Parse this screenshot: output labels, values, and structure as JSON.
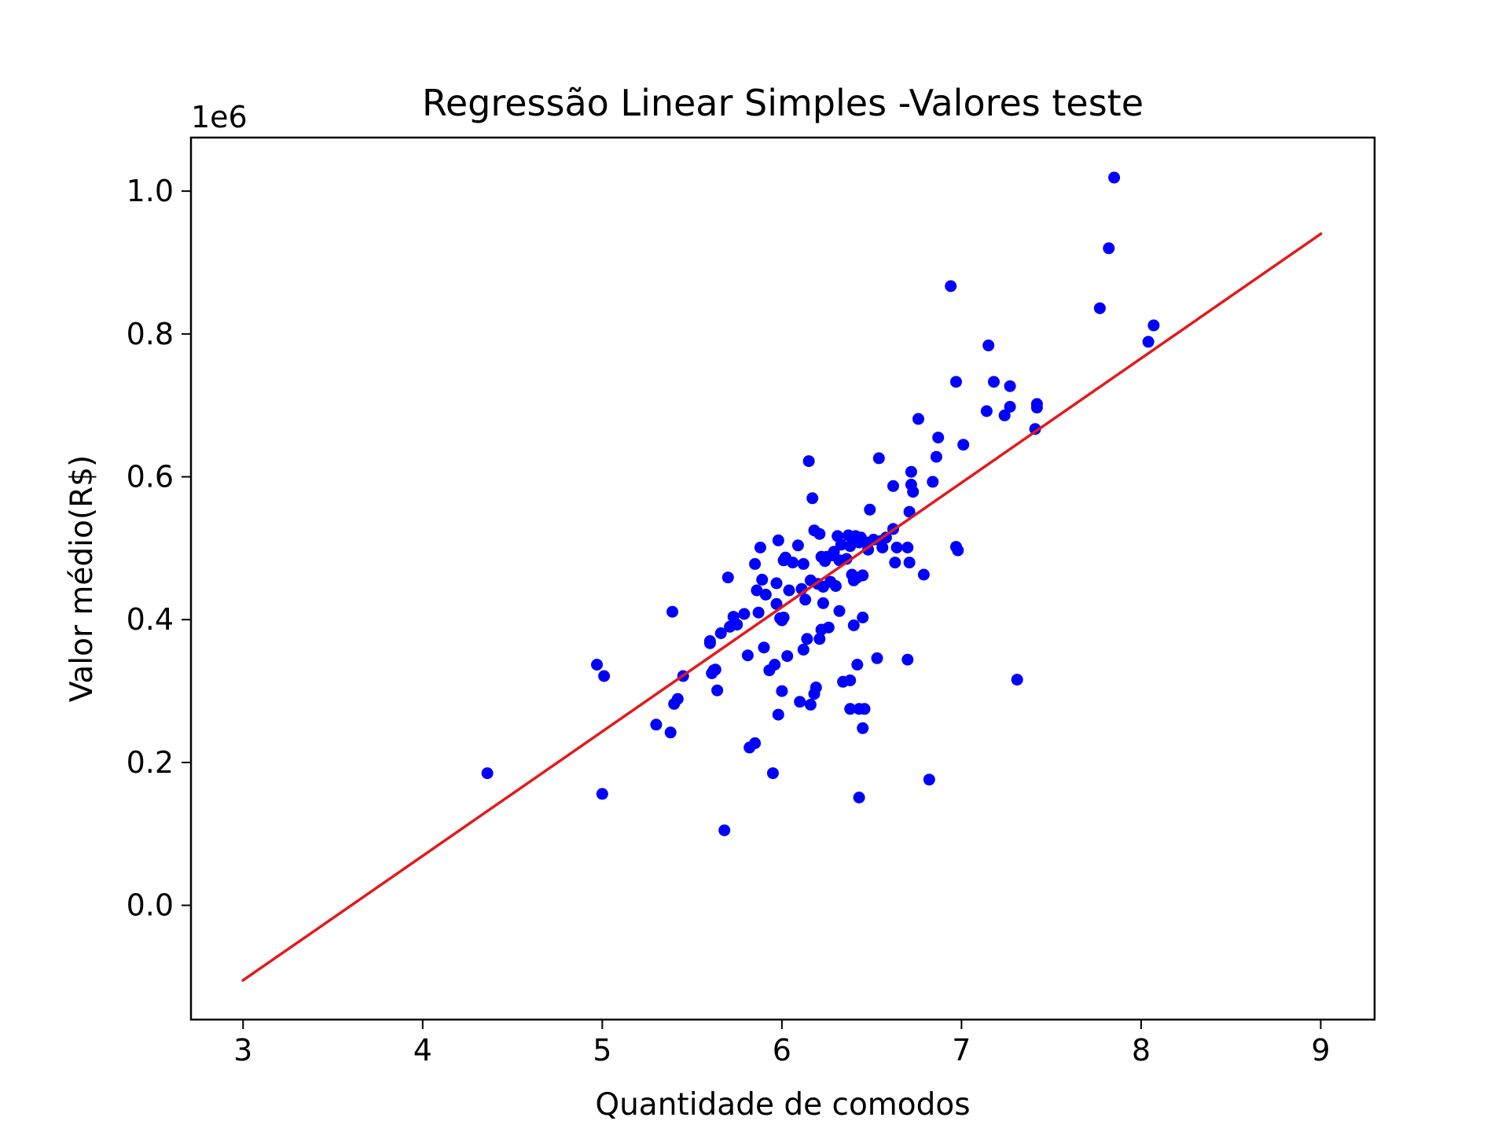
{
  "chart_data": {
    "type": "scatter",
    "title": "Regressão Linear Simples -Valores teste",
    "xlabel": "Quantidade de comodos",
    "ylabel": "Valor médio(R$)",
    "y_offset_label": "1e6",
    "y_multiplier": 1000000,
    "xlim": [
      2.71,
      9.3
    ],
    "ylim": [
      -0.16,
      1.075
    ],
    "xticks": [
      3,
      4,
      5,
      6,
      7,
      8,
      9
    ],
    "yticks": [
      0.0,
      0.2,
      0.4,
      0.6,
      0.8,
      1.0
    ],
    "ytick_labels": [
      "0.0",
      "0.2",
      "0.4",
      "0.6",
      "0.8",
      "1.0"
    ],
    "xtick_labels": [
      "3",
      "4",
      "5",
      "6",
      "7",
      "8",
      "9"
    ],
    "grid": false,
    "colors": {
      "points": "#0000ff",
      "line": "#e31a1c",
      "axes": "#000000"
    },
    "series": [
      {
        "kind": "scatter",
        "points": [
          [
            4.36,
            0.185
          ],
          [
            4.97,
            0.337
          ],
          [
            5.01,
            0.321
          ],
          [
            5.0,
            0.156
          ],
          [
            5.3,
            0.253
          ],
          [
            5.38,
            0.242
          ],
          [
            5.39,
            0.411
          ],
          [
            5.4,
            0.282
          ],
          [
            5.42,
            0.289
          ],
          [
            5.45,
            0.321
          ],
          [
            5.6,
            0.367
          ],
          [
            5.6,
            0.37
          ],
          [
            5.61,
            0.325
          ],
          [
            5.62,
            0.329
          ],
          [
            5.63,
            0.33
          ],
          [
            5.64,
            0.301
          ],
          [
            5.66,
            0.381
          ],
          [
            5.68,
            0.105
          ],
          [
            5.7,
            0.459
          ],
          [
            5.71,
            0.39
          ],
          [
            5.73,
            0.404
          ],
          [
            5.75,
            0.393
          ],
          [
            5.79,
            0.408
          ],
          [
            5.81,
            0.35
          ],
          [
            5.82,
            0.221
          ],
          [
            5.85,
            0.227
          ],
          [
            5.85,
            0.478
          ],
          [
            5.86,
            0.441
          ],
          [
            5.87,
            0.41
          ],
          [
            5.88,
            0.501
          ],
          [
            5.89,
            0.456
          ],
          [
            5.9,
            0.361
          ],
          [
            5.91,
            0.435
          ],
          [
            5.93,
            0.329
          ],
          [
            5.95,
            0.185
          ],
          [
            5.96,
            0.337
          ],
          [
            5.97,
            0.451
          ],
          [
            5.97,
            0.422
          ],
          [
            5.98,
            0.511
          ],
          [
            5.98,
            0.267
          ],
          [
            5.99,
            0.402
          ],
          [
            6.0,
            0.399
          ],
          [
            6.0,
            0.3
          ],
          [
            6.01,
            0.403
          ],
          [
            6.01,
            0.483
          ],
          [
            6.02,
            0.487
          ],
          [
            6.03,
            0.349
          ],
          [
            6.04,
            0.441
          ],
          [
            6.06,
            0.48
          ],
          [
            6.09,
            0.504
          ],
          [
            6.1,
            0.285
          ],
          [
            6.11,
            0.443
          ],
          [
            6.12,
            0.478
          ],
          [
            6.12,
            0.358
          ],
          [
            6.13,
            0.428
          ],
          [
            6.14,
            0.373
          ],
          [
            6.15,
            0.622
          ],
          [
            6.16,
            0.281
          ],
          [
            6.16,
            0.455
          ],
          [
            6.17,
            0.57
          ],
          [
            6.18,
            0.525
          ],
          [
            6.18,
            0.296
          ],
          [
            6.19,
            0.305
          ],
          [
            6.2,
            0.45
          ],
          [
            6.21,
            0.52
          ],
          [
            6.21,
            0.373
          ],
          [
            6.22,
            0.488
          ],
          [
            6.22,
            0.386
          ],
          [
            6.23,
            0.446
          ],
          [
            6.23,
            0.423
          ],
          [
            6.24,
            0.482
          ],
          [
            6.25,
            0.488
          ],
          [
            6.26,
            0.389
          ],
          [
            6.27,
            0.453
          ],
          [
            6.28,
            0.49
          ],
          [
            6.29,
            0.495
          ],
          [
            6.3,
            0.447
          ],
          [
            6.31,
            0.517
          ],
          [
            6.32,
            0.412
          ],
          [
            6.32,
            0.483
          ],
          [
            6.33,
            0.505
          ],
          [
            6.34,
            0.313
          ],
          [
            6.36,
            0.485
          ],
          [
            6.37,
            0.518
          ],
          [
            6.38,
            0.315
          ],
          [
            6.38,
            0.275
          ],
          [
            6.38,
            0.503
          ],
          [
            6.39,
            0.463
          ],
          [
            6.4,
            0.392
          ],
          [
            6.4,
            0.455
          ],
          [
            6.41,
            0.517
          ],
          [
            6.42,
            0.459
          ],
          [
            6.42,
            0.337
          ],
          [
            6.43,
            0.151
          ],
          [
            6.43,
            0.275
          ],
          [
            6.43,
            0.508
          ],
          [
            6.44,
            0.515
          ],
          [
            6.45,
            0.462
          ],
          [
            6.45,
            0.403
          ],
          [
            6.45,
            0.248
          ],
          [
            6.46,
            0.275
          ],
          [
            6.47,
            0.508
          ],
          [
            6.48,
            0.498
          ],
          [
            6.49,
            0.554
          ],
          [
            6.51,
            0.512
          ],
          [
            6.53,
            0.346
          ],
          [
            6.54,
            0.626
          ],
          [
            6.55,
            0.51
          ],
          [
            6.56,
            0.501
          ],
          [
            6.58,
            0.515
          ],
          [
            6.62,
            0.527
          ],
          [
            6.62,
            0.587
          ],
          [
            6.63,
            0.48
          ],
          [
            6.64,
            0.501
          ],
          [
            6.7,
            0.501
          ],
          [
            6.7,
            0.344
          ],
          [
            6.71,
            0.48
          ],
          [
            6.71,
            0.551
          ],
          [
            6.72,
            0.607
          ],
          [
            6.72,
            0.589
          ],
          [
            6.73,
            0.579
          ],
          [
            6.76,
            0.681
          ],
          [
            6.79,
            0.463
          ],
          [
            6.82,
            0.176
          ],
          [
            6.84,
            0.593
          ],
          [
            6.86,
            0.628
          ],
          [
            6.87,
            0.655
          ],
          [
            6.94,
            0.867
          ],
          [
            6.97,
            0.733
          ],
          [
            6.97,
            0.502
          ],
          [
            6.98,
            0.497
          ],
          [
            7.01,
            0.645
          ],
          [
            7.14,
            0.692
          ],
          [
            7.15,
            0.784
          ],
          [
            7.18,
            0.733
          ],
          [
            7.24,
            0.686
          ],
          [
            7.27,
            0.698
          ],
          [
            7.27,
            0.727
          ],
          [
            7.31,
            0.316
          ],
          [
            7.41,
            0.667
          ],
          [
            7.42,
            0.702
          ],
          [
            7.42,
            0.697
          ],
          [
            7.77,
            0.836
          ],
          [
            7.82,
            0.92
          ],
          [
            7.85,
            1.019
          ],
          [
            8.04,
            0.789
          ],
          [
            8.07,
            0.812
          ]
        ]
      },
      {
        "kind": "line",
        "points": [
          [
            3,
            -0.105
          ],
          [
            9,
            0.94
          ]
        ]
      }
    ]
  }
}
